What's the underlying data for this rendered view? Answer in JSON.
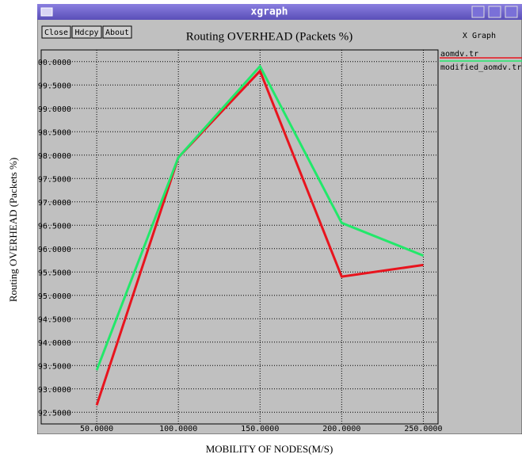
{
  "window": {
    "title": "xgraph",
    "buttons": [
      "Close",
      "Hdcpy",
      "About"
    ],
    "brand": "X Graph"
  },
  "chart_data": {
    "type": "line",
    "title": "Routing OVERHEAD (Packets %)",
    "x_label": "MOBILITY OF NODES(M/S)",
    "y_label": "Routing OVERHEAD (Packets %)",
    "x": [
      50,
      100,
      150,
      200,
      250
    ],
    "series": [
      {
        "name": "aomdv.tr",
        "color": "#e8141e",
        "values": [
          92.65,
          97.95,
          99.8,
          95.4,
          95.65
        ]
      },
      {
        "name": "modified_aomdv.tr",
        "color": "#22e86a",
        "values": [
          93.4,
          97.95,
          99.9,
          96.55,
          95.85
        ]
      }
    ],
    "xlim": [
      16,
      259
    ],
    "xticks": [
      {
        "value": 50,
        "label": "50.0000"
      },
      {
        "value": 100,
        "label": "100.0000"
      },
      {
        "value": 150,
        "label": "150.0000"
      },
      {
        "value": 200,
        "label": "200.0000"
      },
      {
        "value": 250,
        "label": "250.0000"
      }
    ],
    "ylim": [
      92.25,
      100.25
    ],
    "yticks": [
      {
        "value": 92.5,
        "label": "92.5000"
      },
      {
        "value": 93,
        "label": "93.0000"
      },
      {
        "value": 93.5,
        "label": "93.5000"
      },
      {
        "value": 94,
        "label": "94.0000"
      },
      {
        "value": 94.5,
        "label": "94.5000"
      },
      {
        "value": 95,
        "label": "95.0000"
      },
      {
        "value": 95.5,
        "label": "95.5000"
      },
      {
        "value": 96,
        "label": "96.0000"
      },
      {
        "value": 96.5,
        "label": "96.5000"
      },
      {
        "value": 97,
        "label": "97.0000"
      },
      {
        "value": 97.5,
        "label": "97.5000"
      },
      {
        "value": 98,
        "label": "98.0000"
      },
      {
        "value": 98.5,
        "label": "98.5000"
      },
      {
        "value": 99,
        "label": "99.0000"
      },
      {
        "value": 99.5,
        "label": "99.5000"
      },
      {
        "value": 100,
        "label": "100.0000"
      }
    ],
    "grid": true
  }
}
